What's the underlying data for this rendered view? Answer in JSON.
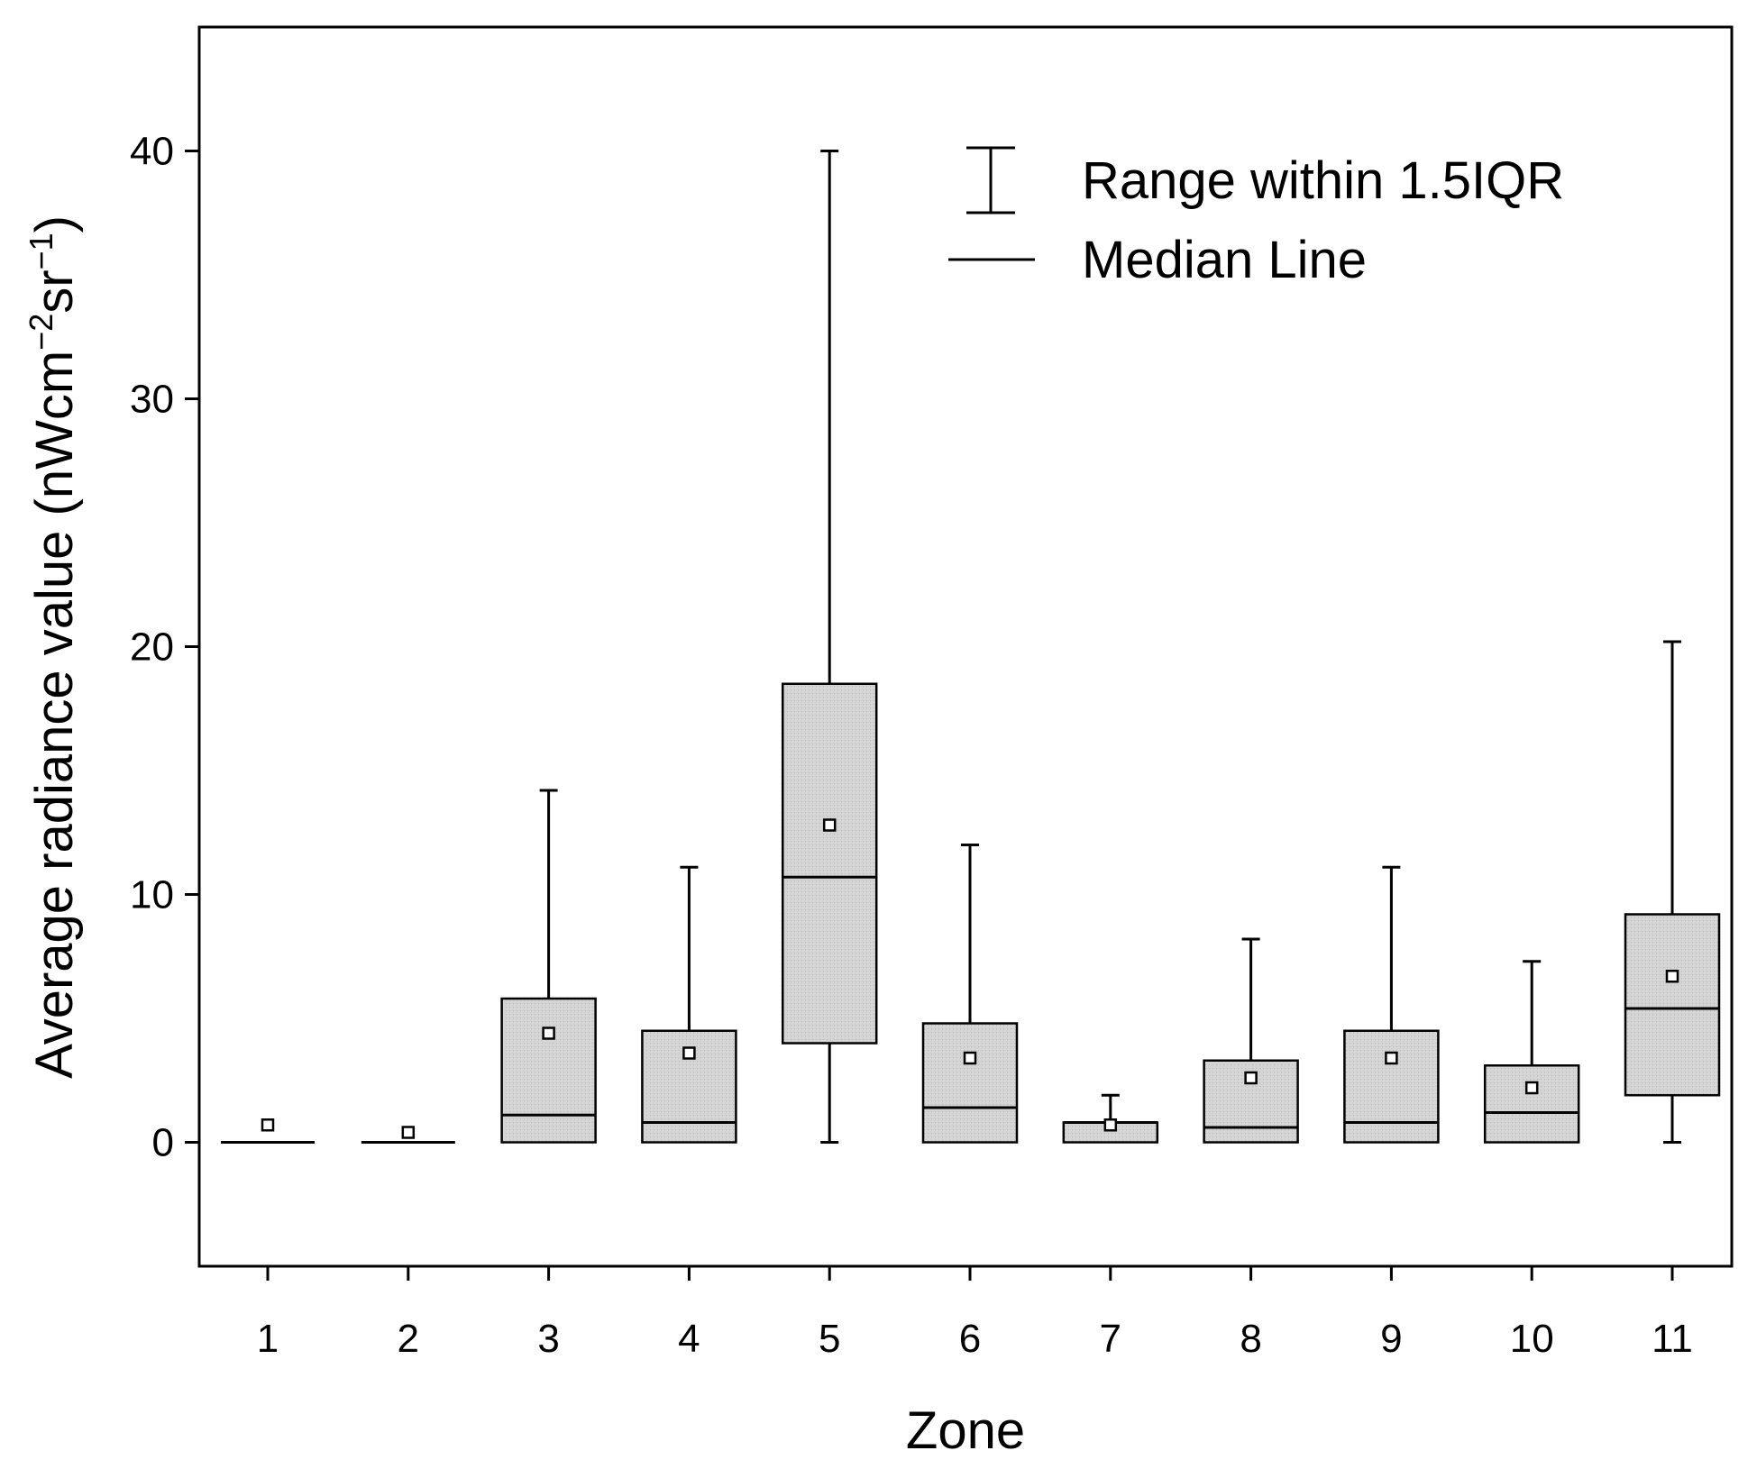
{
  "chart_data": {
    "type": "box",
    "xlabel": "Zone",
    "ylabel": {
      "main": "Average radiance value (nWcm",
      "sup1": "−2",
      "mid": "sr",
      "sup2": "−1",
      "end": ")"
    },
    "ylim": [
      -5,
      45
    ],
    "yticks": [
      0,
      10,
      20,
      30,
      40
    ],
    "categories": [
      "1",
      "2",
      "3",
      "4",
      "5",
      "6",
      "7",
      "8",
      "9",
      "10",
      "11"
    ],
    "boxes": [
      {
        "zone": "1",
        "whisker_low": 0,
        "q1": 0,
        "median": 0,
        "q3": 0,
        "whisker_high": 0,
        "mean": 0.7
      },
      {
        "zone": "2",
        "whisker_low": 0,
        "q1": 0,
        "median": 0,
        "q3": 0,
        "whisker_high": 0,
        "mean": 0.4
      },
      {
        "zone": "3",
        "whisker_low": 0,
        "q1": 0,
        "median": 1.1,
        "q3": 5.8,
        "whisker_high": 14.2,
        "mean": 4.4
      },
      {
        "zone": "4",
        "whisker_low": 0,
        "q1": 0,
        "median": 0.8,
        "q3": 4.5,
        "whisker_high": 11.1,
        "mean": 3.6
      },
      {
        "zone": "5",
        "whisker_low": 0,
        "q1": 4.0,
        "median": 10.7,
        "q3": 18.5,
        "whisker_high": 40.0,
        "mean": 12.8
      },
      {
        "zone": "6",
        "whisker_low": 0,
        "q1": 0,
        "median": 1.4,
        "q3": 4.8,
        "whisker_high": 12.0,
        "mean": 3.4
      },
      {
        "zone": "7",
        "whisker_low": 0,
        "q1": 0,
        "median": 0.8,
        "q3": 0.8,
        "whisker_high": 1.9,
        "mean": 0.7
      },
      {
        "zone": "8",
        "whisker_low": 0,
        "q1": 0,
        "median": 0.6,
        "q3": 3.3,
        "whisker_high": 8.2,
        "mean": 2.6
      },
      {
        "zone": "9",
        "whisker_low": 0,
        "q1": 0,
        "median": 0.8,
        "q3": 4.5,
        "whisker_high": 11.1,
        "mean": 3.4
      },
      {
        "zone": "10",
        "whisker_low": 0,
        "q1": 0,
        "median": 1.2,
        "q3": 3.1,
        "whisker_high": 7.3,
        "mean": 2.2
      },
      {
        "zone": "11",
        "whisker_low": 0,
        "q1": 1.9,
        "median": 5.4,
        "q3": 9.2,
        "whisker_high": 20.2,
        "mean": 6.7
      }
    ],
    "legend": {
      "placement": "top-right",
      "items": [
        {
          "symbol": "whisker",
          "label": "Range within 1.5IQR"
        },
        {
          "symbol": "line",
          "label": "Median Line"
        }
      ]
    },
    "colors": {
      "box_fill": "#d4d4d4",
      "stroke": "#000000",
      "background": "#ffffff"
    }
  }
}
